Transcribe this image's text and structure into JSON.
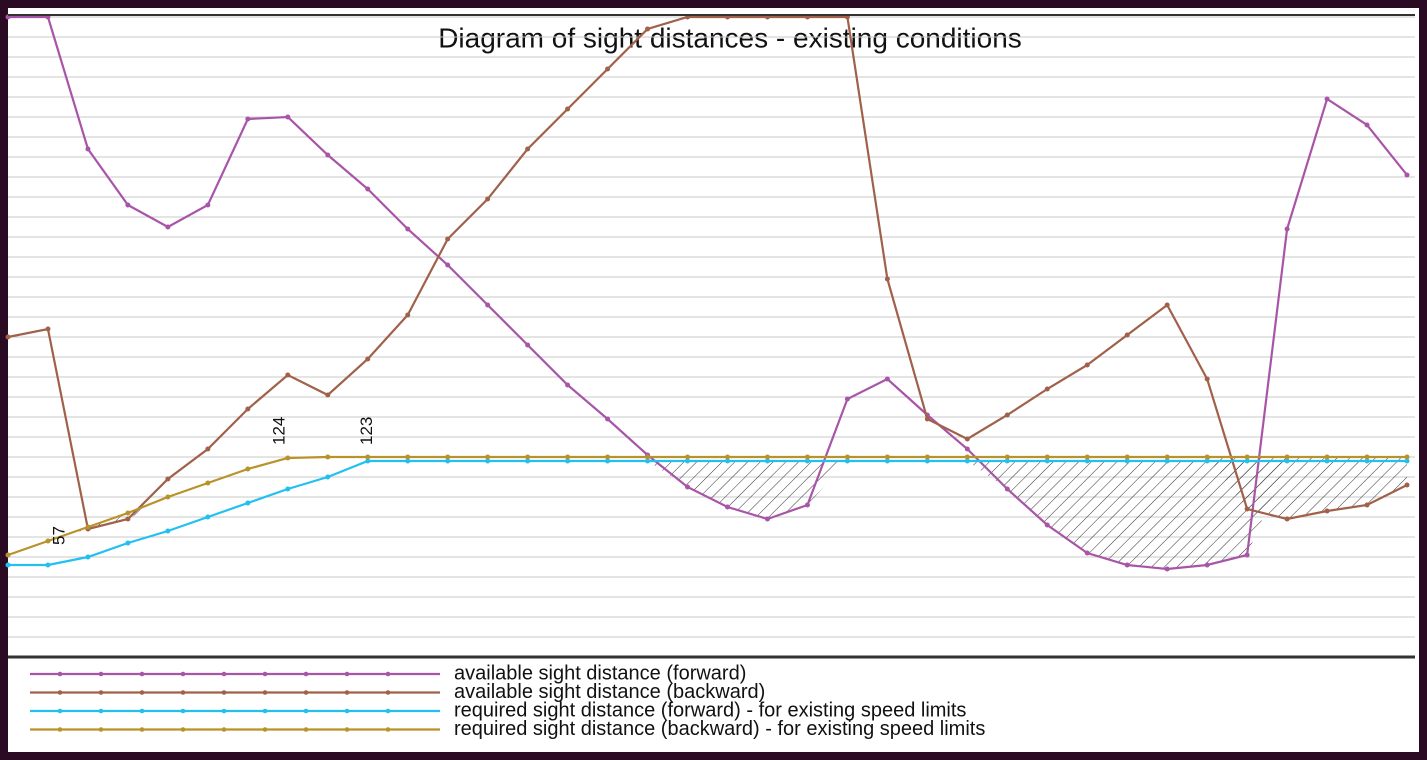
{
  "chart_data": {
    "type": "line",
    "title": "Diagram of sight distances - existing conditions",
    "x": [
      0,
      1,
      2,
      3,
      4,
      5,
      6,
      7,
      8,
      9,
      10,
      11,
      12,
      13,
      14,
      15,
      16,
      17,
      18,
      19,
      20,
      21,
      22,
      23,
      24,
      25,
      26,
      27,
      28,
      29,
      30,
      31,
      32,
      33,
      34,
      35
    ],
    "xlim": [
      0,
      35.2
    ],
    "ylim": [
      0,
      32
    ],
    "yticks": [
      0,
      1,
      2,
      3,
      4,
      5,
      6,
      7,
      8,
      9,
      10,
      11,
      12,
      13,
      14,
      15,
      16,
      17,
      18,
      19,
      20,
      21,
      22,
      23,
      24,
      25,
      26,
      27,
      28,
      29,
      30,
      31,
      32
    ],
    "grid": true,
    "series": [
      {
        "name": "available sight distance (forward)",
        "color": "#a855a8",
        "values": [
          32,
          32,
          25.4,
          22.6,
          21.5,
          22.6,
          26.9,
          27,
          25.1,
          23.4,
          21.4,
          19.6,
          17.6,
          15.6,
          13.6,
          11.9,
          10.1,
          8.5,
          7.5,
          6.9,
          7.6,
          12.9,
          13.9,
          12.1,
          10.4,
          8.4,
          6.6,
          5.2,
          4.6,
          4.4,
          4.6,
          5.1,
          21.4,
          27.9,
          26.6,
          24.1
        ]
      },
      {
        "name": "available sight distance (backward)",
        "color": "#a0604a",
        "values": [
          16,
          16.4,
          6.4,
          6.9,
          8.9,
          10.4,
          12.4,
          14.1,
          13.1,
          14.9,
          17.1,
          20.9,
          22.9,
          25.4,
          27.4,
          29.4,
          31.4,
          32,
          32,
          32,
          32,
          32,
          18.9,
          11.9,
          10.9,
          12.1,
          13.4,
          14.6,
          16.1,
          17.6,
          13.9,
          7.4,
          6.9,
          7.3,
          7.6,
          8.6
        ]
      },
      {
        "name": "required sight distance (forward) - for existing speed limits",
        "color": "#22c0f0",
        "values": [
          4.6,
          4.6,
          5.0,
          5.7,
          6.3,
          7.0,
          7.7,
          8.4,
          9.0,
          9.8,
          9.8,
          9.8,
          9.8,
          9.8,
          9.8,
          9.8,
          9.8,
          9.8,
          9.8,
          9.8,
          9.8,
          9.8,
          9.8,
          9.8,
          9.8,
          9.8,
          9.8,
          9.8,
          9.8,
          9.8,
          9.8,
          9.8,
          9.8,
          9.8,
          9.8,
          9.8
        ]
      },
      {
        "name": "required sight distance (backward) - for existing speed limits",
        "color": "#b8922a",
        "values": [
          5.1,
          5.8,
          6.5,
          7.2,
          8.0,
          8.7,
          9.4,
          9.95,
          10,
          10,
          10,
          10,
          10,
          10,
          10,
          10,
          10,
          10,
          10,
          10,
          10,
          10,
          10,
          10,
          10,
          10,
          10,
          10,
          10,
          10,
          10,
          10,
          10,
          10,
          10,
          10
        ]
      }
    ],
    "annotations": [
      {
        "text": "57",
        "x": 1.3,
        "y": 5.6
      },
      {
        "text": "124",
        "x": 6.8,
        "y": 10.6
      },
      {
        "text": "123",
        "x": 9.0,
        "y": 10.6
      }
    ]
  }
}
